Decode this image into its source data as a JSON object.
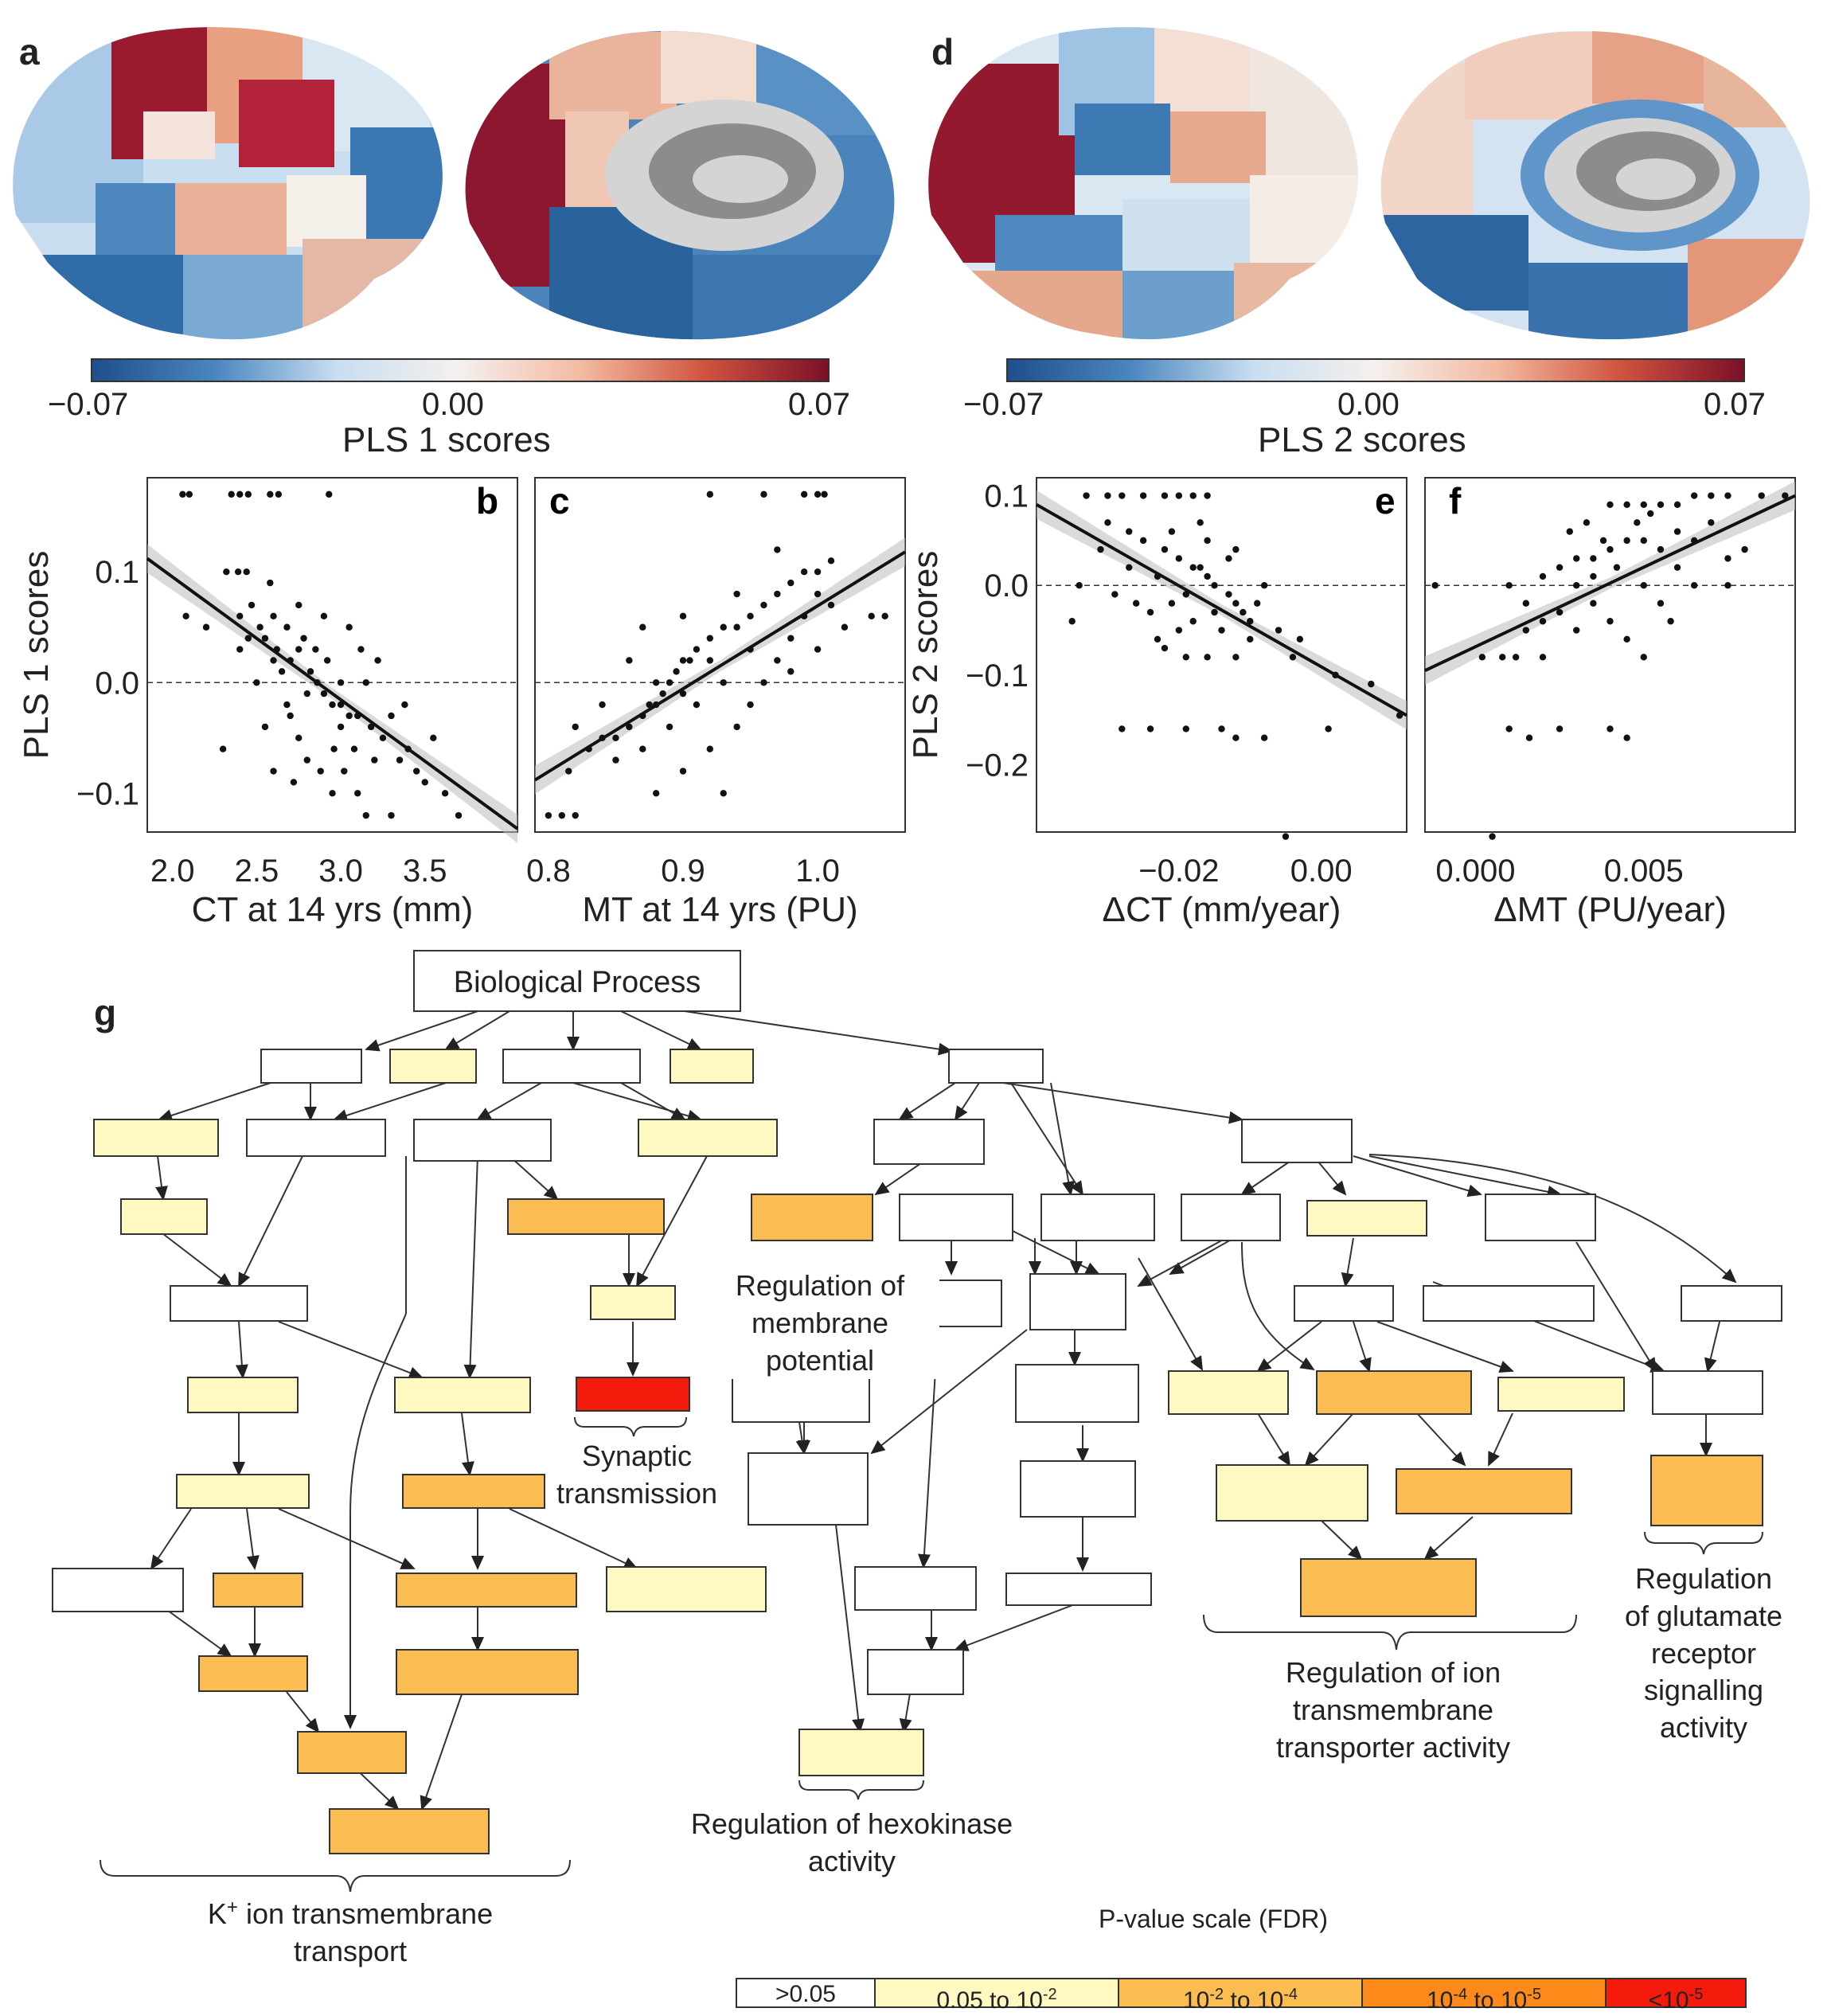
{
  "panels": {
    "a": "a",
    "b": "b",
    "c": "c",
    "d": "d",
    "e": "e",
    "f": "f",
    "g": "g"
  },
  "colorbar_left": {
    "min": "−0.07",
    "mid": "0.00",
    "max": "0.07",
    "title": "PLS 1 scores"
  },
  "colorbar_right": {
    "min": "−0.07",
    "mid": "0.00",
    "max": "0.07",
    "title": "PLS 2 scores"
  },
  "colors": {
    "neg_dark": "#1f4e8c",
    "neg_light": "#c9def0",
    "zero": "#f5f0ee",
    "pos_light": "#f2b9a0",
    "pos_dark": "#7b1028",
    "fdr_ns": "#ffffff",
    "fdr_1": "#fff8c0",
    "fdr_2": "#fbbd52",
    "fdr_3": "#fb8a1a",
    "fdr_4": "#f41a0c"
  },
  "chart_data": [
    {
      "type": "scatter",
      "panel": "b",
      "xlabel": "CT at 14 yrs (mm)",
      "ylabel": "PLS 1 scores",
      "xlim": [
        1.85,
        4.05
      ],
      "ylim": [
        -0.135,
        0.185
      ],
      "xticks": [
        "2.0",
        "2.5",
        "3.0",
        "3.5"
      ],
      "xtick_values": [
        2.0,
        2.5,
        3.0,
        3.5
      ],
      "yticks": [
        "0.1",
        "0.0",
        "−0.1"
      ],
      "ytick_values": [
        0.1,
        0.0,
        -0.1
      ],
      "fit": {
        "x": [
          1.85,
          4.05
        ],
        "y": [
          0.112,
          -0.132
        ]
      },
      "points": [
        [
          2.06,
          0.17
        ],
        [
          2.1,
          0.17
        ],
        [
          2.35,
          0.17
        ],
        [
          2.4,
          0.17
        ],
        [
          2.45,
          0.17
        ],
        [
          2.58,
          0.17
        ],
        [
          2.63,
          0.17
        ],
        [
          2.93,
          0.17
        ],
        [
          2.32,
          0.1
        ],
        [
          2.39,
          0.1
        ],
        [
          2.44,
          0.1
        ],
        [
          2.58,
          0.09
        ],
        [
          2.47,
          0.07
        ],
        [
          2.52,
          0.05
        ],
        [
          2.55,
          0.04
        ],
        [
          2.62,
          0.03
        ],
        [
          2.7,
          0.02
        ],
        [
          2.75,
          0.03
        ],
        [
          2.82,
          0.01
        ],
        [
          2.86,
          0.0
        ],
        [
          2.9,
          -0.01
        ],
        [
          2.95,
          -0.02
        ],
        [
          3.0,
          -0.02
        ],
        [
          3.05,
          -0.03
        ],
        [
          3.1,
          -0.03
        ],
        [
          3.18,
          -0.04
        ],
        [
          3.25,
          -0.05
        ],
        [
          3.35,
          -0.07
        ],
        [
          3.45,
          -0.08
        ],
        [
          3.7,
          -0.12
        ],
        [
          3.62,
          -0.1
        ],
        [
          2.68,
          -0.02
        ],
        [
          2.75,
          -0.05
        ],
        [
          2.8,
          -0.07
        ],
        [
          2.88,
          -0.08
        ],
        [
          2.96,
          -0.06
        ],
        [
          3.02,
          -0.08
        ],
        [
          3.1,
          -0.1
        ],
        [
          3.15,
          -0.12
        ],
        [
          3.3,
          -0.12
        ],
        [
          2.6,
          -0.08
        ],
        [
          2.5,
          0.0
        ],
        [
          2.45,
          0.04
        ],
        [
          2.4,
          0.03
        ],
        [
          2.2,
          0.05
        ],
        [
          2.08,
          0.06
        ],
        [
          2.3,
          -0.06
        ],
        [
          2.75,
          0.07
        ],
        [
          2.9,
          0.06
        ],
        [
          3.05,
          0.05
        ],
        [
          3.12,
          0.03
        ],
        [
          3.22,
          0.02
        ],
        [
          2.65,
          0.01
        ],
        [
          2.7,
          -0.03
        ],
        [
          2.8,
          -0.01
        ],
        [
          3.0,
          0.0
        ],
        [
          3.3,
          -0.03
        ],
        [
          3.55,
          -0.05
        ],
        [
          3.4,
          -0.06
        ],
        [
          2.55,
          -0.04
        ],
        [
          2.85,
          0.03
        ],
        [
          2.6,
          0.06
        ],
        [
          3.2,
          -0.07
        ],
        [
          2.95,
          -0.1
        ],
        [
          2.72,
          -0.09
        ],
        [
          3.08,
          -0.06
        ],
        [
          3.5,
          -0.09
        ],
        [
          2.78,
          0.04
        ],
        [
          2.92,
          0.02
        ],
        [
          3.15,
          0.0
        ],
        [
          2.68,
          0.05
        ],
        [
          3.38,
          -0.02
        ],
        [
          3.0,
          -0.04
        ],
        [
          2.6,
          0.02
        ],
        [
          2.4,
          0.06
        ]
      ]
    },
    {
      "type": "scatter",
      "panel": "c",
      "xlabel": "MT at 14 yrs (PU)",
      "ylabel": "",
      "xlim": [
        0.79,
        1.065
      ],
      "ylim": [
        -0.135,
        0.185
      ],
      "xticks": [
        "0.8",
        "0.9",
        "1.0"
      ],
      "xtick_values": [
        0.8,
        0.9,
        1.0
      ],
      "fit": {
        "x": [
          0.79,
          1.065
        ],
        "y": [
          -0.088,
          0.118
        ]
      },
      "points": [
        [
          0.8,
          -0.12
        ],
        [
          0.81,
          -0.12
        ],
        [
          0.82,
          -0.12
        ],
        [
          0.815,
          -0.08
        ],
        [
          0.83,
          -0.06
        ],
        [
          0.84,
          -0.05
        ],
        [
          0.85,
          -0.05
        ],
        [
          0.86,
          -0.04
        ],
        [
          0.87,
          -0.03
        ],
        [
          0.875,
          -0.02
        ],
        [
          0.88,
          -0.02
        ],
        [
          0.885,
          -0.01
        ],
        [
          0.89,
          0.0
        ],
        [
          0.895,
          0.01
        ],
        [
          0.9,
          0.02
        ],
        [
          0.905,
          0.02
        ],
        [
          0.91,
          0.03
        ],
        [
          0.92,
          0.04
        ],
        [
          0.93,
          0.05
        ],
        [
          0.94,
          0.05
        ],
        [
          0.95,
          0.06
        ],
        [
          0.96,
          0.07
        ],
        [
          0.97,
          0.08
        ],
        [
          0.98,
          0.09
        ],
        [
          0.99,
          0.1
        ],
        [
          1.0,
          0.1
        ],
        [
          1.01,
          0.07
        ],
        [
          1.02,
          0.05
        ],
        [
          1.04,
          0.06
        ],
        [
          1.05,
          0.06
        ],
        [
          0.96,
          0.17
        ],
        [
          0.99,
          0.17
        ],
        [
          1.0,
          0.17
        ],
        [
          1.005,
          0.17
        ],
        [
          0.92,
          0.17
        ],
        [
          0.88,
          -0.1
        ],
        [
          0.9,
          -0.08
        ],
        [
          0.92,
          -0.06
        ],
        [
          0.94,
          -0.04
        ],
        [
          0.86,
          0.02
        ],
        [
          0.87,
          0.05
        ],
        [
          0.9,
          0.06
        ],
        [
          0.93,
          0.0
        ],
        [
          0.95,
          -0.02
        ],
        [
          0.97,
          0.02
        ],
        [
          0.98,
          0.04
        ],
        [
          1.0,
          0.03
        ],
        [
          0.91,
          -0.02
        ],
        [
          0.89,
          -0.04
        ],
        [
          0.85,
          -0.07
        ],
        [
          0.84,
          -0.02
        ],
        [
          0.96,
          0.0
        ],
        [
          0.94,
          0.08
        ],
        [
          0.99,
          0.06
        ],
        [
          1.01,
          0.11
        ],
        [
          0.97,
          0.12
        ],
        [
          0.93,
          -0.1
        ],
        [
          0.82,
          -0.04
        ],
        [
          0.88,
          0.0
        ],
        [
          0.9,
          -0.01
        ],
        [
          0.92,
          0.02
        ],
        [
          0.95,
          0.03
        ],
        [
          0.98,
          0.01
        ],
        [
          1.0,
          0.08
        ],
        [
          0.87,
          -0.06
        ]
      ]
    },
    {
      "type": "scatter",
      "panel": "e",
      "xlabel": "ΔCT (mm/year)",
      "ylabel": "PLS 2 scores",
      "xlim": [
        -0.04,
        0.012
      ],
      "ylim": [
        -0.275,
        0.12
      ],
      "xticks": [
        "−0.02",
        "0.00"
      ],
      "xtick_values": [
        -0.02,
        0.0
      ],
      "yticks": [
        "0.1",
        "0.0",
        "−0.1",
        "−0.2"
      ],
      "ytick_values": [
        0.1,
        0.0,
        -0.1,
        -0.2
      ],
      "fit": {
        "x": [
          -0.04,
          0.012
        ],
        "y": [
          0.09,
          -0.145
        ]
      },
      "points": [
        [
          -0.033,
          0.1
        ],
        [
          -0.03,
          0.1
        ],
        [
          -0.028,
          0.1
        ],
        [
          -0.025,
          0.1
        ],
        [
          -0.022,
          0.1
        ],
        [
          -0.02,
          0.1
        ],
        [
          -0.018,
          0.1
        ],
        [
          -0.016,
          0.1
        ],
        [
          -0.03,
          0.07
        ],
        [
          -0.027,
          0.06
        ],
        [
          -0.025,
          0.05
        ],
        [
          -0.022,
          0.04
        ],
        [
          -0.02,
          0.03
        ],
        [
          -0.018,
          0.02
        ],
        [
          -0.016,
          0.01
        ],
        [
          -0.015,
          0.0
        ],
        [
          -0.013,
          -0.01
        ],
        [
          -0.012,
          -0.02
        ],
        [
          -0.011,
          -0.03
        ],
        [
          -0.02,
          -0.05
        ],
        [
          -0.022,
          -0.07
        ],
        [
          -0.019,
          -0.08
        ],
        [
          -0.016,
          -0.08
        ],
        [
          -0.012,
          -0.08
        ],
        [
          -0.01,
          -0.06
        ],
        [
          -0.004,
          -0.08
        ],
        [
          0.002,
          -0.1
        ],
        [
          0.007,
          -0.11
        ],
        [
          0.011,
          -0.145
        ],
        [
          -0.035,
          -0.04
        ],
        [
          -0.034,
          0.0
        ],
        [
          -0.029,
          -0.01
        ],
        [
          -0.026,
          -0.02
        ],
        [
          -0.023,
          0.01
        ],
        [
          -0.021,
          -0.02
        ],
        [
          -0.018,
          -0.04
        ],
        [
          -0.017,
          0.02
        ],
        [
          -0.014,
          -0.05
        ],
        [
          -0.013,
          0.03
        ],
        [
          -0.009,
          -0.02
        ],
        [
          -0.008,
          0.0
        ],
        [
          -0.028,
          -0.16
        ],
        [
          -0.024,
          -0.16
        ],
        [
          -0.019,
          -0.16
        ],
        [
          -0.014,
          -0.16
        ],
        [
          -0.012,
          -0.17
        ],
        [
          -0.008,
          -0.17
        ],
        [
          0.001,
          -0.16
        ],
        [
          -0.005,
          -0.28
        ],
        [
          -0.024,
          -0.03
        ],
        [
          -0.021,
          0.06
        ],
        [
          -0.016,
          0.05
        ],
        [
          -0.012,
          0.04
        ],
        [
          -0.027,
          0.02
        ],
        [
          -0.019,
          -0.01
        ],
        [
          -0.015,
          -0.03
        ],
        [
          -0.01,
          -0.04
        ],
        [
          -0.006,
          -0.05
        ],
        [
          -0.003,
          -0.06
        ],
        [
          -0.031,
          0.04
        ],
        [
          -0.017,
          0.07
        ],
        [
          -0.023,
          -0.06
        ]
      ]
    },
    {
      "type": "scatter",
      "panel": "f",
      "xlabel": "ΔMT (PU/year)",
      "ylabel": "",
      "xlim": [
        -0.0015,
        0.0095
      ],
      "ylim": [
        -0.275,
        0.12
      ],
      "xticks": [
        "0.000",
        "0.005"
      ],
      "xtick_values": [
        0.0,
        0.005
      ],
      "fit": {
        "x": [
          -0.0015,
          0.0095
        ],
        "y": [
          -0.095,
          0.1
        ]
      },
      "points": [
        [
          0.004,
          0.09
        ],
        [
          0.0045,
          0.09
        ],
        [
          0.005,
          0.09
        ],
        [
          0.0055,
          0.09
        ],
        [
          0.006,
          0.09
        ],
        [
          0.0065,
          0.1
        ],
        [
          0.007,
          0.1
        ],
        [
          0.0075,
          0.1
        ],
        [
          0.0085,
          0.1
        ],
        [
          0.0092,
          0.1
        ],
        [
          0.001,
          0.0
        ],
        [
          0.0015,
          -0.02
        ],
        [
          0.002,
          0.01
        ],
        [
          0.0025,
          0.02
        ],
        [
          0.003,
          0.03
        ],
        [
          0.0035,
          0.03
        ],
        [
          0.004,
          0.04
        ],
        [
          0.0045,
          0.05
        ],
        [
          0.005,
          0.05
        ],
        [
          0.0055,
          0.04
        ],
        [
          0.006,
          0.06
        ],
        [
          0.0065,
          0.05
        ],
        [
          0.007,
          0.07
        ],
        [
          0.0075,
          0.03
        ],
        [
          0.008,
          0.04
        ],
        [
          0.0002,
          -0.08
        ],
        [
          0.0008,
          -0.08
        ],
        [
          0.0012,
          -0.08
        ],
        [
          0.002,
          -0.08
        ],
        [
          0.001,
          -0.16
        ],
        [
          0.0016,
          -0.17
        ],
        [
          0.0025,
          -0.16
        ],
        [
          0.004,
          -0.16
        ],
        [
          0.0045,
          -0.17
        ],
        [
          0.0005,
          -0.28
        ],
        [
          -0.0012,
          0.0
        ],
        [
          0.003,
          0.0
        ],
        [
          0.0035,
          -0.02
        ],
        [
          0.004,
          -0.04
        ],
        [
          0.0045,
          -0.06
        ],
        [
          0.005,
          -0.08
        ],
        [
          0.003,
          -0.05
        ],
        [
          0.0025,
          -0.03
        ],
        [
          0.0035,
          0.01
        ],
        [
          0.0042,
          0.02
        ],
        [
          0.005,
          0.0
        ],
        [
          0.0055,
          -0.02
        ],
        [
          0.006,
          0.02
        ],
        [
          0.0065,
          0.0
        ],
        [
          0.0075,
          0.0
        ],
        [
          0.0028,
          0.06
        ],
        [
          0.0033,
          0.07
        ],
        [
          0.0038,
          0.05
        ],
        [
          0.0048,
          0.07
        ],
        [
          0.0052,
          0.08
        ],
        [
          0.002,
          -0.04
        ],
        [
          0.0015,
          -0.05
        ],
        [
          0.0058,
          -0.04
        ]
      ]
    }
  ],
  "go_tree": {
    "root": "Biological Process",
    "labels": {
      "membrane": "Regulation of\nmembrane\npotential",
      "synaptic": "Synaptic\ntransmission",
      "hexokinase": "Regulation of hexokinase\nactivity",
      "ion_transporter": "Regulation of ion\ntransmembrane\ntransporter activity",
      "glutamate": "Regulation\nof glutamate\nreceptor\nsignalling\nactivity",
      "k_transport_prefix": "K",
      "k_transport_sup": "+",
      "k_transport_rest": " ion transmembrane\ntransport"
    }
  },
  "legend": {
    "title": "P-value scale (FDR)",
    "cells": [
      {
        "label": ">0.05"
      },
      {
        "label_base": "0.05 to 10",
        "label_sup": "-2"
      },
      {
        "label_base": "10",
        "label_sup": "-2",
        "label_mid": " to 10",
        "label_sup2": "-4"
      },
      {
        "label_base": "10",
        "label_sup": "-4",
        "label_mid": " to 10",
        "label_sup2": "-5"
      },
      {
        "label_base": "<10",
        "label_sup": "-5"
      }
    ]
  }
}
